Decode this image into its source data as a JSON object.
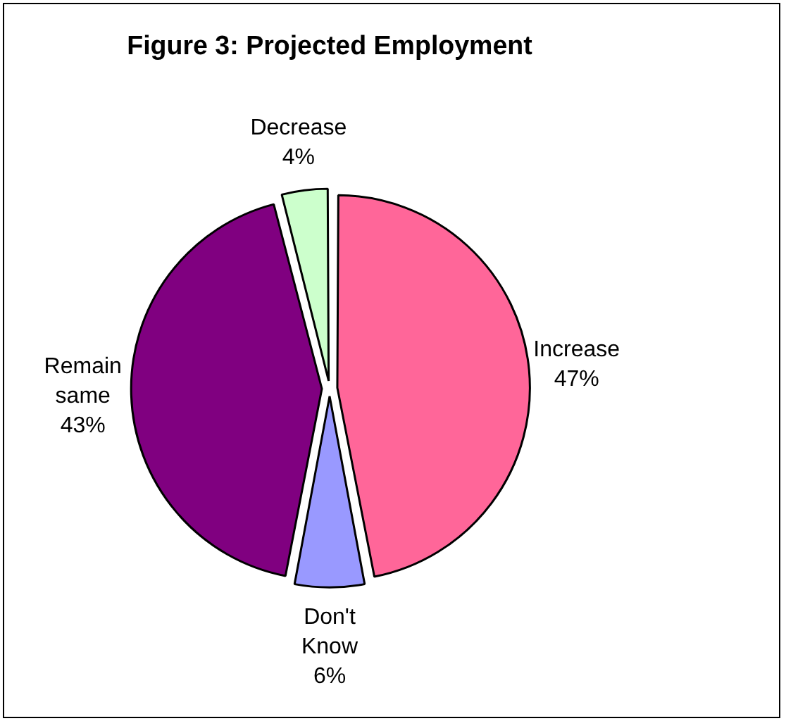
{
  "chart_data": {
    "type": "pie",
    "title": "Figure 3: Projected Employment",
    "categories": [
      "Increase",
      "Don't Know",
      "Remain same",
      "Decrease"
    ],
    "values": [
      47,
      6,
      43,
      4
    ],
    "value_labels": [
      "47%",
      "6%",
      "43%",
      "4%"
    ],
    "colors": [
      "#ff6699",
      "#9999ff",
      "#800080",
      "#ccffcc"
    ],
    "legend": false
  }
}
